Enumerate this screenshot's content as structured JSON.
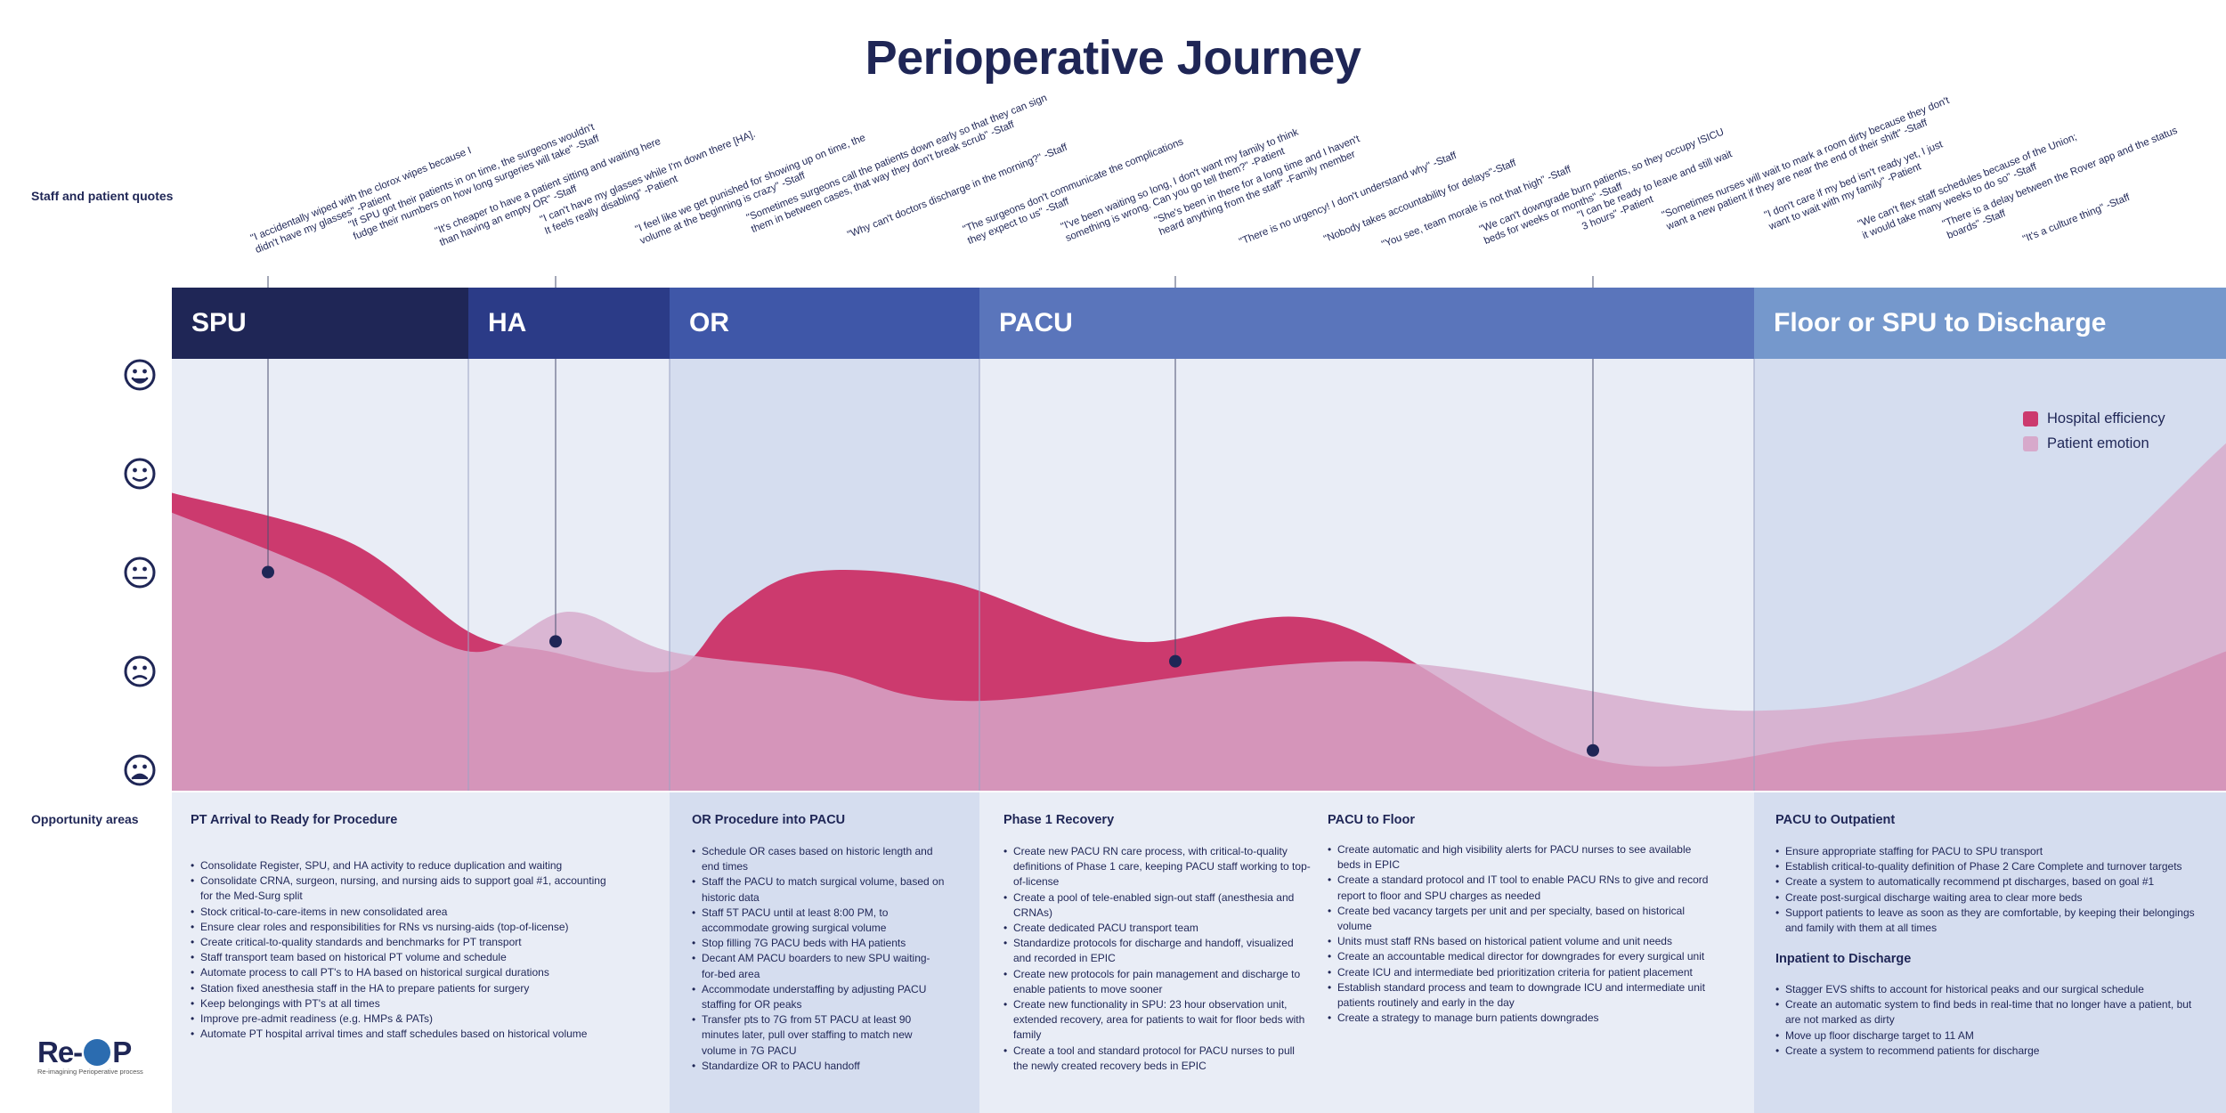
{
  "title": "Perioperative Journey",
  "labels": {
    "quotes": "Staff and patient quotes",
    "opportunities": "Opportunity areas"
  },
  "quotes": [
    "\"I accidentally wiped with the clorox wipes because I\ndidn't have my glasses\" -Patient",
    "\"If SPU got their patients in on time, the surgeons wouldn't\nfudge their numbers on how long surgeries will take\" -Staff",
    "\"It's cheaper to have a patient sitting and waiting here\nthan having an empty OR\" -Staff",
    "\"I can't have my glasses while I'm down there [HA].\nIt feels really disabling\" -Patient",
    "\"I feel like we get punished for showing up on time, the\nvolume at the beginning is crazy\" -Staff",
    "\"Sometimes surgeons call the patients down early so that they can sign\nthem in between cases, that way they don't break scrub\" -Staff",
    "\"Why can't doctors discharge in the morning?\" -Staff",
    "\"The surgeons don't communicate the complications\nthey expect to us\" -Staff",
    "\"I've been waiting so long, I don't want my family to think\nsomething is wrong. Can you go tell them?\" -Patient",
    "\"She's been in there for a long time and I haven't\nheard anything from the staff\" -Family member",
    "\"There is no urgency! I don't understand why\" -Staff",
    "\"Nobody takes accountability for delays\"-Staff",
    "\"You see, team morale is not that high\" -Staff",
    "\"We can't downgrade burn patients, so they occupy ISICU\nbeds for weeks or months\" -Staff",
    "\"I can be ready to leave and still wait\n3 hours\" -Patient",
    "\"Sometimes nurses will wait to mark a room dirty because they don't\nwant a new patient if they are near the end of their shift\" -Staff",
    "\"I don't care if my bed isn't ready yet, I just\nwant to wait with my family\" -Patient",
    "\"We can't flex staff schedules because of the Union;\nit would take many weeks to do so\" -Staff",
    "\"There is a delay between the Rover app and the status\nboards\" -Staff",
    "\"It's a culture thing\" -Staff"
  ],
  "stages": [
    "SPU",
    "HA",
    "OR",
    "PACU",
    "Floor or SPU to Discharge"
  ],
  "emotion_scale": [
    "very-happy-face-icon",
    "happy-face-icon",
    "neutral-face-icon",
    "sad-face-icon",
    "very-sad-face-icon"
  ],
  "legend": [
    {
      "label": "Hospital efficiency",
      "color": "#cc3a6e"
    },
    {
      "label": "Patient emotion",
      "color": "#d7a9cb"
    }
  ],
  "colors": {
    "spu": "#1f2656",
    "ha": "#2b3b87",
    "or": "#3f57a8",
    "pacu": "#5a75bb",
    "floor": "#7598cc",
    "bg_light": "#e9edf6",
    "bg_mid": "#d5ddef",
    "marker": "#1f2656"
  },
  "chart_data": {
    "type": "area",
    "xlabel": "",
    "ylabel": "",
    "categories": [
      "SPU",
      "HA",
      "OR",
      "PACU",
      "Floor or SPU to Discharge"
    ],
    "ylim": [
      1,
      5
    ],
    "series": [
      {
        "name": "Hospital efficiency",
        "x": [
          0.0,
          0.6,
          1.0,
          1.4,
          2.0,
          2.2,
          2.45,
          2.9,
          3.2,
          3.45,
          3.8,
          4.2,
          4.6,
          5.0
        ],
        "values": [
          3.8,
          3.3,
          2.4,
          2.2,
          2.0,
          2.6,
          3.0,
          2.9,
          2.3,
          2.5,
          1.1,
          1.3,
          1.5,
          2.2
        ]
      },
      {
        "name": "Patient emotion",
        "x": [
          0.0,
          0.5,
          1.0,
          1.5,
          2.0,
          2.5,
          3.0,
          3.5,
          4.0,
          4.5,
          5.0
        ],
        "values": [
          3.6,
          3.0,
          2.2,
          2.6,
          2.2,
          2.0,
          1.7,
          2.1,
          1.6,
          2.2,
          4.3
        ]
      }
    ],
    "markers": [
      {
        "stage": "SPU",
        "value": 3.0
      },
      {
        "stage": "HA",
        "value": 2.3
      },
      {
        "stage": "PACU",
        "value": 2.1
      },
      {
        "stage": "PACU",
        "value": 1.2
      }
    ]
  },
  "opportunities": [
    {
      "heading": "PT Arrival to Ready for Procedure",
      "items": [
        "Consolidate Register, SPU, and HA activity to reduce duplication and waiting",
        "Consolidate CRNA, surgeon, nursing, and nursing aids to support goal #1, accounting for the Med-Surg split",
        "Stock critical-to-care-items in new consolidated area",
        "Ensure clear roles and responsibilities for RNs vs nursing-aids (top-of-license)",
        "Create critical-to-quality standards and benchmarks for PT  transport",
        "Staff transport team based on historical PT volume and schedule",
        "Automate process to call PT's to HA based on historical surgical durations",
        "Station fixed anesthesia staff in the HA to prepare patients for surgery",
        "Keep belongings with PT's at all times",
        "Improve pre-admit readiness (e.g. HMPs & PATs)",
        "Automate PT hospital arrival times and staff schedules based on historical volume"
      ]
    },
    {
      "heading": "OR Procedure into PACU",
      "items": [
        "Schedule OR cases based on historic length and end times",
        "Staff the PACU to match surgical volume, based on historic data",
        "Staff 5T PACU until at least 8:00 PM, to accommodate growing surgical volume",
        "Stop filling 7G PACU beds with HA patients",
        "Decant AM PACU boarders to new SPU waiting-for-bed area",
        "Accommodate understaffing by adjusting PACU staffing for OR peaks",
        "Transfer pts to 7G from 5T PACU at least 90 minutes later, pull over staffing to match new volume in 7G PACU",
        "Standardize OR to PACU handoff"
      ]
    },
    {
      "heading": "Phase 1 Recovery",
      "items": [
        "Create new PACU RN care process, with critical-to-quality definitions of Phase 1 care, keeping PACU staff working to top-of-license",
        "Create a pool of tele-enabled sign-out staff (anesthesia and CRNAs)",
        "Create dedicated PACU transport team",
        "Standardize protocols for discharge and handoff, visualized and recorded in EPIC",
        "Create new protocols for pain management and discharge to enable patients to move sooner",
        "Create new functionality in SPU: 23 hour observation unit, extended recovery,  area for patients to wait for floor beds with family",
        "Create a tool and standard protocol for PACU nurses to pull the newly created recovery beds in EPIC"
      ]
    },
    {
      "heading": "PACU to Floor",
      "items": [
        "Create automatic and high visibility alerts for PACU nurses to see available beds in EPIC",
        "Create a standard protocol and IT tool to enable PACU RNs to give and record report to floor and SPU charges as needed",
        "Create bed vacancy targets per unit and per specialty, based on historical volume",
        "Units must staff RNs based on historical patient volume and unit needs",
        "Create an accountable medical director for downgrades for every surgical unit",
        "Create ICU and intermediate bed prioritization criteria for patient placement",
        "Establish standard process and team to downgrade ICU and intermediate unit patients routinely and early in the day",
        "Create a strategy to manage burn patients downgrades"
      ]
    },
    {
      "heading": "PACU to Outpatient",
      "items": [
        "Ensure appropriate staffing for PACU to SPU transport",
        "Establish critical-to-quality definition of Phase 2 Care Complete and turnover targets",
        "Create a system to automatically recommend pt discharges, based on goal #1",
        "Create post-surgical discharge waiting area to clear more beds",
        "Support patients to leave as soon as they are comfortable, by keeping their belongings and family with them at all times"
      ]
    },
    {
      "heading": "Inpatient to Discharge",
      "items": [
        "Stagger EVS shifts to account for historical peaks and our surgical schedule",
        "Create an automatic system to find beds in real-time that no longer have a patient, but are not marked as dirty",
        "Move up floor discharge target to 11 AM",
        "Create a system to recommend patients for discharge"
      ]
    }
  ],
  "logo": {
    "text_a": "Re-",
    "text_b": "P",
    "subtitle": "Re-imagining Perioperative process"
  }
}
